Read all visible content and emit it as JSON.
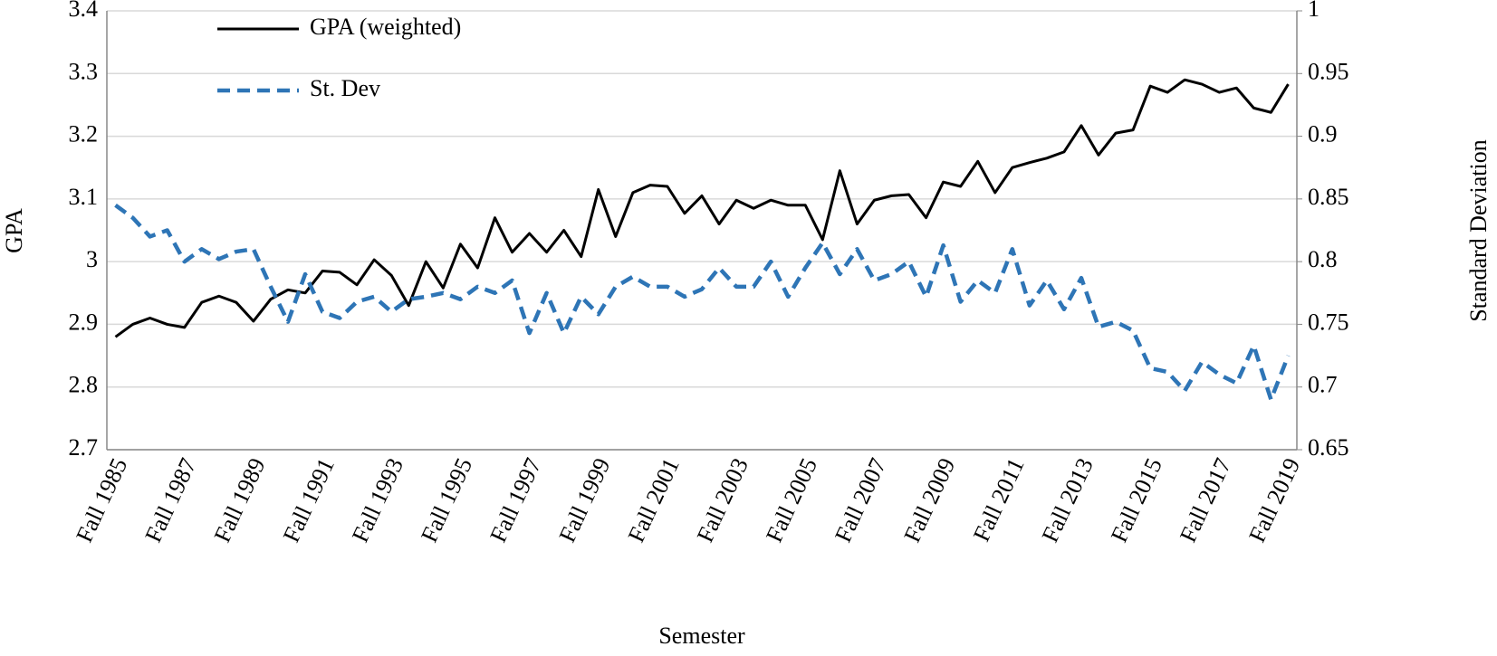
{
  "chart_data": {
    "type": "line",
    "xlabel": "Semester",
    "ylabel": "GPA",
    "y2label": "Standard Deviation",
    "categories": [
      "Fall 1985",
      null,
      null,
      null,
      "Fall 1987",
      null,
      null,
      null,
      "Fall 1989",
      null,
      null,
      null,
      "Fall 1991",
      null,
      null,
      null,
      "Fall 1993",
      null,
      null,
      null,
      "Fall 1995",
      null,
      null,
      null,
      "Fall 1997",
      null,
      null,
      null,
      "Fall 1999",
      null,
      null,
      null,
      "Fall 2001",
      null,
      null,
      null,
      "Fall 2003",
      null,
      null,
      null,
      "Fall 2005",
      null,
      null,
      null,
      "Fall 2007",
      null,
      null,
      null,
      "Fall 2009",
      null,
      null,
      null,
      "Fall 2011",
      null,
      null,
      null,
      "Fall 2013",
      null,
      null,
      null,
      "Fall 2015",
      null,
      null,
      null,
      "Fall 2017",
      null,
      null,
      null,
      "Fall 2019"
    ],
    "series": [
      {
        "name": "GPA (weighted)",
        "color": "#000000",
        "line_style": "solid",
        "axis": "y",
        "values": [
          2.88,
          2.9,
          2.91,
          2.9,
          2.895,
          2.935,
          2.945,
          2.935,
          2.905,
          2.94,
          2.955,
          2.95,
          2.985,
          2.983,
          2.963,
          3.003,
          2.978,
          2.93,
          3.0,
          2.958,
          3.028,
          2.99,
          3.07,
          3.015,
          3.045,
          3.015,
          3.05,
          3.008,
          3.115,
          3.04,
          3.11,
          3.122,
          3.12,
          3.077,
          3.105,
          3.06,
          3.098,
          3.085,
          3.098,
          3.09,
          3.09,
          3.035,
          3.145,
          3.06,
          3.098,
          3.105,
          3.107,
          3.07,
          3.127,
          3.12,
          3.16,
          3.11,
          3.15,
          3.158,
          3.165,
          3.175,
          3.217,
          3.17,
          3.205,
          3.21,
          3.28,
          3.27,
          3.29,
          3.283,
          3.27,
          3.277,
          3.245,
          3.238,
          3.283
        ]
      },
      {
        "name": "St. Dev",
        "color": "#2e75b6",
        "line_style": "dashed",
        "axis": "y2",
        "values": [
          0.845,
          0.835,
          0.82,
          0.825,
          0.8,
          0.81,
          0.802,
          0.808,
          0.81,
          0.78,
          0.752,
          0.79,
          0.76,
          0.755,
          0.768,
          0.772,
          0.76,
          0.77,
          0.772,
          0.775,
          0.77,
          0.78,
          0.775,
          0.785,
          0.743,
          0.775,
          0.743,
          0.772,
          0.758,
          0.78,
          0.788,
          0.78,
          0.78,
          0.772,
          0.778,
          0.795,
          0.78,
          0.78,
          0.8,
          0.772,
          0.795,
          0.815,
          0.79,
          0.81,
          0.785,
          0.79,
          0.8,
          0.772,
          0.813,
          0.768,
          0.785,
          0.775,
          0.81,
          0.765,
          0.785,
          0.762,
          0.787,
          0.748,
          0.752,
          0.745,
          0.715,
          0.712,
          0.697,
          0.72,
          0.71,
          0.703,
          0.733,
          0.69,
          0.725
        ]
      }
    ],
    "ylim": [
      2.7,
      3.4
    ],
    "yticks": [
      2.7,
      2.8,
      2.9,
      3,
      3.1,
      3.2,
      3.3,
      3.4
    ],
    "y2lim": [
      0.65,
      1
    ],
    "y2ticks": [
      0.65,
      0.7,
      0.75,
      0.8,
      0.85,
      0.9,
      0.95,
      1
    ],
    "grid": true,
    "legend": "upper left"
  }
}
